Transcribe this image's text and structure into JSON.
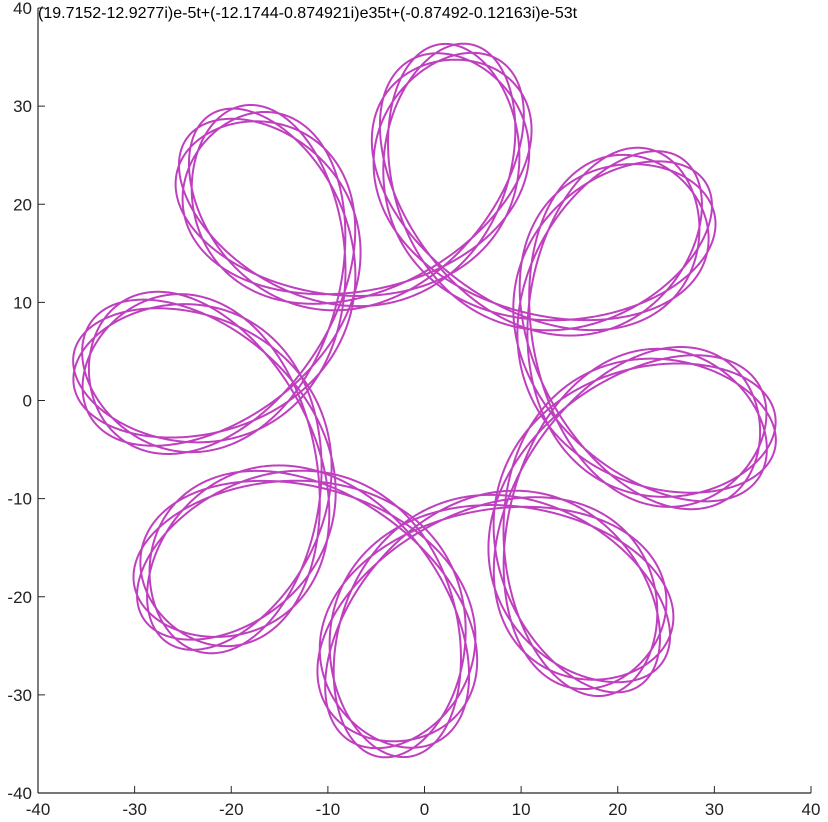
{
  "chart_data": {
    "type": "line",
    "title": "(19.7152-12.9277i)e-5t+(-12.1744-0.874921i)e35t+(-0.87492-0.12163i)e-53t",
    "xlabel": "",
    "ylabel": "",
    "xlim": [
      -40,
      40
    ],
    "ylim": [
      -40,
      40
    ],
    "xticks": [
      -40,
      -30,
      -20,
      -10,
      0,
      10,
      20,
      30,
      40
    ],
    "yticks": [
      -40,
      -30,
      -20,
      -10,
      0,
      10,
      20,
      30,
      40
    ],
    "xtick_labels": [
      "-40",
      "-30",
      "-20",
      "-10",
      "0",
      "10",
      "20",
      "30",
      "40"
    ],
    "ytick_labels": [
      "-40",
      "-30",
      "-20",
      "-10",
      "0",
      "10",
      "20",
      "30",
      "40"
    ],
    "grid": false,
    "series": [
      {
        "color": "#bf40bf",
        "kind": "parametric-complex",
        "terms": [
          {
            "re": 19.7152,
            "im": -12.9277,
            "freq": -5
          },
          {
            "re": -12.1744,
            "im": -0.874921,
            "freq": 35
          },
          {
            "re": -0.87492,
            "im": -0.12163,
            "freq": -53
          }
        ],
        "t_range": [
          0,
          6.283185307
        ]
      }
    ]
  }
}
